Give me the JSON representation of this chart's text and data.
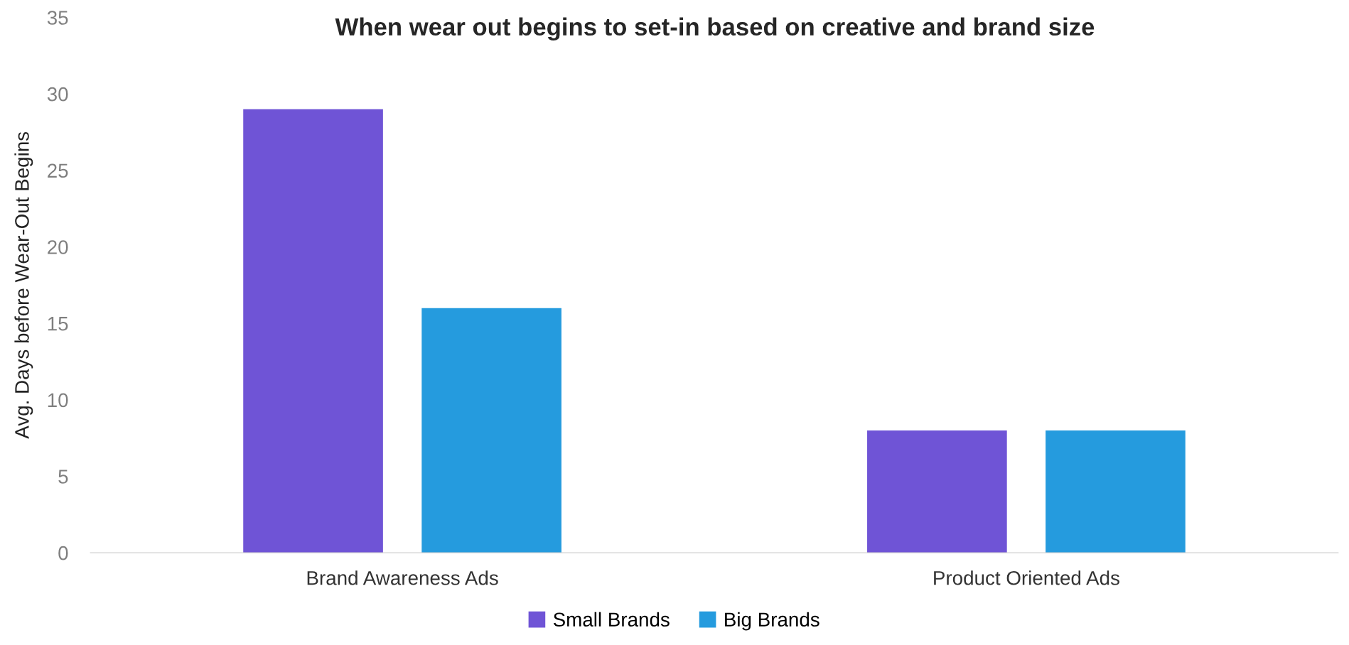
{
  "chart_data": {
    "type": "bar",
    "title": "When wear out begins to set-in based on creative and brand size",
    "ylabel": "Avg. Days before Wear-Out Begins",
    "categories": [
      "Brand Awareness Ads",
      "Product Oriented Ads"
    ],
    "series": [
      {
        "name": "Small Brands",
        "color": "#6f54d6",
        "values": [
          29,
          8
        ]
      },
      {
        "name": "Big Brands",
        "color": "#259bde",
        "values": [
          16,
          8
        ]
      }
    ],
    "ylim": [
      0,
      35
    ],
    "yticks": [
      0,
      5,
      10,
      15,
      20,
      25,
      30,
      35
    ],
    "grid": false,
    "legend": "bottom"
  }
}
